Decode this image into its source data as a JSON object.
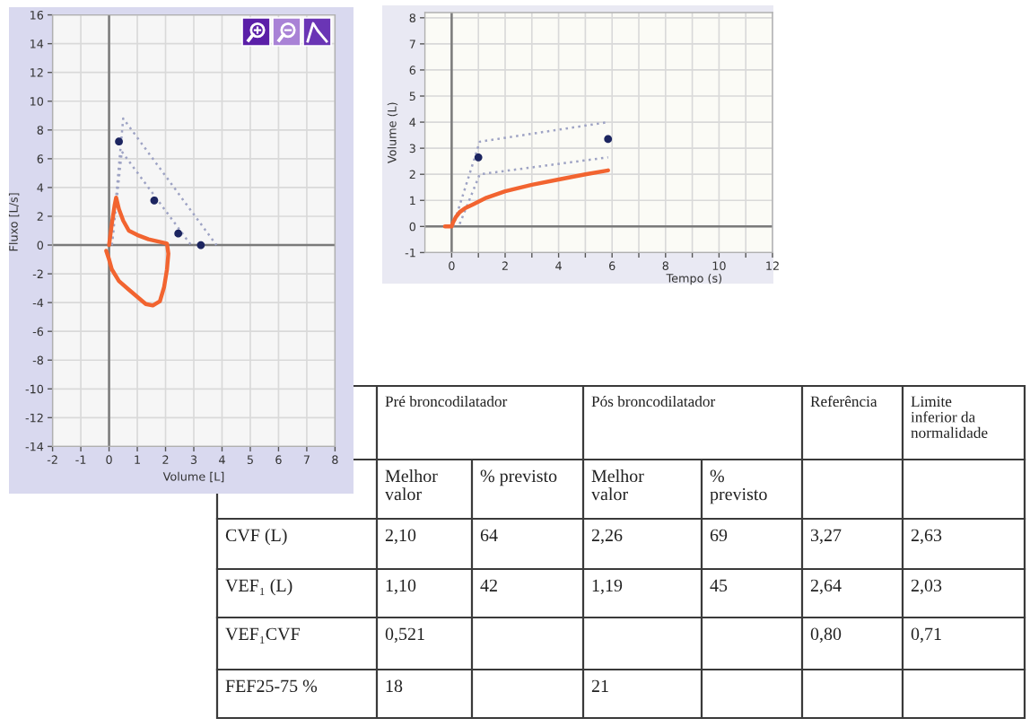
{
  "chart_data": [
    {
      "type": "line",
      "xlabel": "Volume [L]",
      "ylabel": "Fluxo [L/s]",
      "xlim": [
        -2,
        8
      ],
      "ylim": [
        -14,
        16
      ],
      "xticks": [
        -2,
        -1,
        0,
        1,
        2,
        3,
        4,
        5,
        6,
        7,
        8
      ],
      "yticks": [
        -14,
        -12,
        -10,
        -8,
        -6,
        -4,
        -2,
        0,
        2,
        4,
        6,
        8,
        10,
        12,
        14,
        16
      ],
      "grid": true,
      "series": [
        {
          "type": "line",
          "line_style": "dotted",
          "color": "#9ea3c4",
          "x": [
            0.1,
            0.5,
            3.8
          ],
          "values": [
            0,
            8.8,
            0
          ]
        },
        {
          "type": "line",
          "line_style": "dotted",
          "color": "#9ea3c4",
          "x": [
            0.1,
            0.45,
            2.9
          ],
          "values": [
            0,
            6.5,
            0
          ]
        },
        {
          "type": "line",
          "color": "#f26430",
          "x": [
            0,
            0.1,
            0.2,
            0.25,
            0.35,
            0.5,
            0.7,
            1.0,
            1.4,
            1.85,
            2.05,
            2.1,
            2.05,
            1.95,
            1.8,
            1.55,
            1.3,
            1.0,
            0.7,
            0.35,
            0.1,
            0.0,
            -0.1
          ],
          "values": [
            0,
            1.5,
            2.8,
            3.3,
            2.5,
            1.7,
            1.0,
            0.7,
            0.4,
            0.2,
            0.1,
            -0.6,
            -1.7,
            -2.9,
            -3.9,
            -4.2,
            -4.1,
            -3.6,
            -3.1,
            -2.5,
            -1.7,
            -1.0,
            -0.4
          ]
        },
        {
          "type": "scatter",
          "marker": "circle",
          "color": "#1c2560",
          "x": [
            0.35,
            1.6,
            2.45,
            3.25
          ],
          "values": [
            7.2,
            3.1,
            0.8,
            0
          ]
        }
      ]
    },
    {
      "type": "line",
      "xlabel": "Tempo (s)",
      "ylabel": "Volume (L)",
      "xlim": [
        -1,
        12
      ],
      "ylim": [
        -1,
        8.2
      ],
      "xticks": [
        0,
        {
          "value": 1,
          "label": null
        },
        2,
        {
          "value": 3,
          "label": null
        },
        4,
        {
          "value": 5,
          "label": null
        },
        6,
        {
          "value": 7,
          "label": null
        },
        8,
        {
          "value": 9,
          "label": null
        },
        10,
        {
          "value": 11,
          "label": null
        },
        12
      ],
      "yticks": [
        -1,
        0,
        1,
        2,
        3,
        4,
        5,
        6,
        7,
        8
      ],
      "grid": true,
      "series": [
        {
          "type": "line",
          "line_style": "dotted",
          "color": "#9ea3c4",
          "x": [
            0.05,
            1.05,
            5.85
          ],
          "values": [
            0,
            3.25,
            4.0
          ]
        },
        {
          "type": "line",
          "line_style": "dotted",
          "color": "#9ea3c4",
          "x": [
            0.3,
            1.05,
            5.85
          ],
          "values": [
            0.1,
            2.0,
            2.65
          ]
        },
        {
          "type": "line",
          "color": "#f26430",
          "x": [
            -0.25,
            0,
            0.05,
            0.15,
            0.3,
            0.5,
            0.8,
            1.3,
            2,
            3,
            4,
            5,
            5.85
          ],
          "values": [
            0,
            0,
            0.15,
            0.35,
            0.55,
            0.7,
            0.85,
            1.1,
            1.35,
            1.6,
            1.8,
            2.0,
            2.15
          ]
        },
        {
          "type": "scatter",
          "marker": "circle",
          "color": "#1c2560",
          "x": [
            1.0,
            5.85
          ],
          "values": [
            2.65,
            3.35
          ]
        }
      ]
    },
    {
      "type": "other",
      "categories": [
        "Pré broncodilatador",
        null,
        "Pós broncodilatador",
        null,
        "Referência",
        "Limite inferior da normalidade"
      ],
      "y_categories": [
        null,
        "CVF (L)",
        "VEF₁ (L)",
        "VEF₁CVF",
        "FEF25-75 %"
      ],
      "cell_labels": [
        [
          "Melhor valor",
          "% previsto",
          "Melhor valor",
          "% previsto",
          null,
          null
        ],
        [
          "2,10",
          "64",
          "2,26",
          "69",
          "3,27",
          "2,63"
        ],
        [
          "1,10",
          "42",
          "1,19",
          "45",
          "2,64",
          "2,03"
        ],
        [
          "0,521",
          null,
          null,
          null,
          "0,80",
          "0,71"
        ],
        [
          "18",
          null,
          "21",
          null,
          null,
          null
        ]
      ]
    }
  ]
}
